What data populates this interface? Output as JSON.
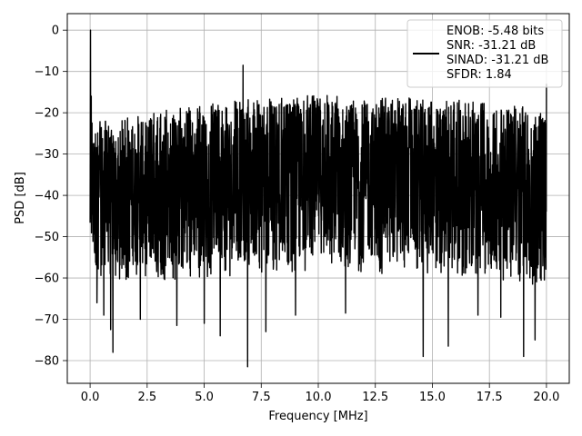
{
  "chart_data": {
    "type": "line",
    "title": "",
    "xlabel": "Frequency [MHz]",
    "ylabel": "PSD [dB]",
    "xlim": [
      -1.0,
      21.0
    ],
    "ylim": [
      -85.5,
      4.0
    ],
    "xticks": [
      0.0,
      2.5,
      5.0,
      7.5,
      10.0,
      12.5,
      15.0,
      17.5,
      20.0
    ],
    "xtick_labels": [
      "0.0",
      "2.5",
      "5.0",
      "7.5",
      "10.0",
      "12.5",
      "15.0",
      "17.5",
      "20.0"
    ],
    "yticks": [
      0,
      -10,
      -20,
      -30,
      -40,
      -50,
      -60,
      -70,
      -80
    ],
    "ytick_labels": [
      "0",
      "−10",
      "−20",
      "−30",
      "−40",
      "−50",
      "−60",
      "−70",
      "−80"
    ],
    "grid": true,
    "legend_position": "top-right",
    "series": [
      {
        "legend_lines": [
          "ENOB: -5.48 bits",
          "SNR: -31.21 dB",
          "SINAD: -31.21 dB",
          "SFDR: 1.84"
        ],
        "color": "#000000",
        "x_range": [
          0.0,
          20.0
        ],
        "upper_envelope": [
          [
            0.0,
            -21
          ],
          [
            1.0,
            -22
          ],
          [
            2.5,
            -20
          ],
          [
            5.0,
            -18
          ],
          [
            7.5,
            -16.5
          ],
          [
            10.0,
            -15.5
          ],
          [
            12.5,
            -16
          ],
          [
            15.0,
            -16.5
          ],
          [
            17.5,
            -17.5
          ],
          [
            20.0,
            -19
          ]
        ],
        "lower_envelope": [
          [
            0.0,
            -61
          ],
          [
            2.5,
            -61
          ],
          [
            5.0,
            -60
          ],
          [
            7.5,
            -59
          ],
          [
            10.0,
            -58
          ],
          [
            12.5,
            -59
          ],
          [
            15.0,
            -59
          ],
          [
            17.5,
            -60
          ],
          [
            20.0,
            -62
          ]
        ],
        "peaks": [
          [
            0.02,
            0.0
          ],
          [
            0.05,
            -16
          ],
          [
            6.7,
            -8.5
          ],
          [
            20.0,
            -13
          ]
        ],
        "dips": [
          [
            0.3,
            -66
          ],
          [
            0.6,
            -69
          ],
          [
            0.9,
            -72.5
          ],
          [
            1.0,
            -78
          ],
          [
            2.2,
            -70
          ],
          [
            3.8,
            -71.5
          ],
          [
            5.0,
            -71
          ],
          [
            5.7,
            -74
          ],
          [
            6.9,
            -81.5
          ],
          [
            7.7,
            -73
          ],
          [
            9.0,
            -69
          ],
          [
            11.2,
            -68.5
          ],
          [
            14.6,
            -79
          ],
          [
            15.7,
            -76.5
          ],
          [
            17.0,
            -69
          ],
          [
            18.0,
            -69.5
          ],
          [
            19.0,
            -79
          ],
          [
            19.5,
            -75
          ]
        ]
      }
    ]
  }
}
